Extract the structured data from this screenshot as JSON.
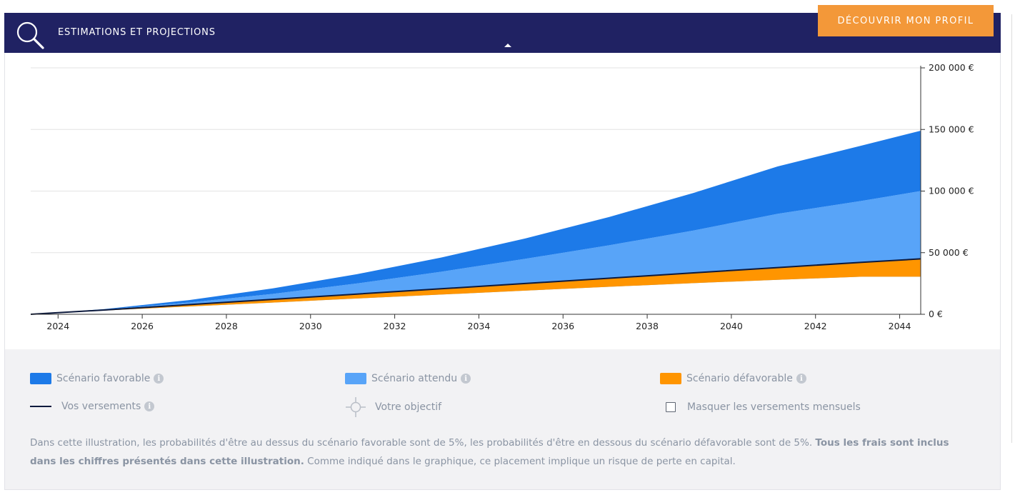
{
  "header": {
    "title": "ESTIMATIONS ET PROJECTIONS",
    "cta_label": "DÉCOUVRIR MON PROFIL",
    "search_icon": "search-icon",
    "caret_icon": "caret-up-icon"
  },
  "colors": {
    "header_bg": "#202263",
    "cta_bg": "#f39839",
    "favorable": "#1d7ae8",
    "attendu": "#58a4f8",
    "defavorable": "#ff9500",
    "versements": "#0d1a3d"
  },
  "chart_data": {
    "type": "area",
    "title": "",
    "xlabel": "",
    "ylabel": "",
    "x_ticks": [
      "2024",
      "2026",
      "2028",
      "2030",
      "2032",
      "2034",
      "2036",
      "2038",
      "2040",
      "2042",
      "2044"
    ],
    "y_ticks": [
      "0 €",
      "50 000 €",
      "100 000 €",
      "150 000 €",
      "200 000 €"
    ],
    "xlim": [
      2023.25,
      2044.4
    ],
    "ylim": [
      0,
      200000
    ],
    "grid": true,
    "y_axis_position": "right",
    "x": [
      2023.25,
      2025,
      2027,
      2029,
      2031,
      2033,
      2035,
      2037,
      2039,
      2041,
      2043,
      2044.4
    ],
    "series": [
      {
        "name": "Scénario favorable",
        "values": [
          0,
          4200,
          11500,
          21000,
          32500,
          46000,
          61500,
          79000,
          98500,
          120000,
          137000,
          149000
        ]
      },
      {
        "name": "Scénario attendu",
        "values": [
          0,
          3800,
          9500,
          16500,
          25000,
          34500,
          45000,
          56000,
          68000,
          81500,
          92000,
          100000
        ]
      },
      {
        "name": "Vos versements",
        "values": [
          0,
          3500,
          7800,
          12100,
          16400,
          20700,
          25000,
          29300,
          33600,
          37900,
          42200,
          45000
        ]
      },
      {
        "name": "Scénario défavorable",
        "values": [
          0,
          3000,
          6300,
          9500,
          12800,
          16000,
          19200,
          22300,
          25300,
          28000,
          30500,
          30500
        ]
      }
    ]
  },
  "legend": {
    "favorable": "Scénario favorable",
    "attendu": "Scénario attendu",
    "defavorable": "Scénario défavorable",
    "versements": "Vos versements",
    "objectif": "Votre objectif",
    "masquer": "Masquer les versements mensuels",
    "masquer_checked": false,
    "info_glyph": "i"
  },
  "disclaimer": {
    "part1": "Dans cette illustration, les probabilités d'être au dessus du scénario favorable sont de 5%, les probabilités d'être en dessous du scénario défavorable sont de 5%. ",
    "bold": "Tous les frais sont inclus dans les chiffres présentés dans cette illustration.",
    "part2": " Comme indiqué dans le graphique, ce placement implique un risque de perte en capital."
  }
}
